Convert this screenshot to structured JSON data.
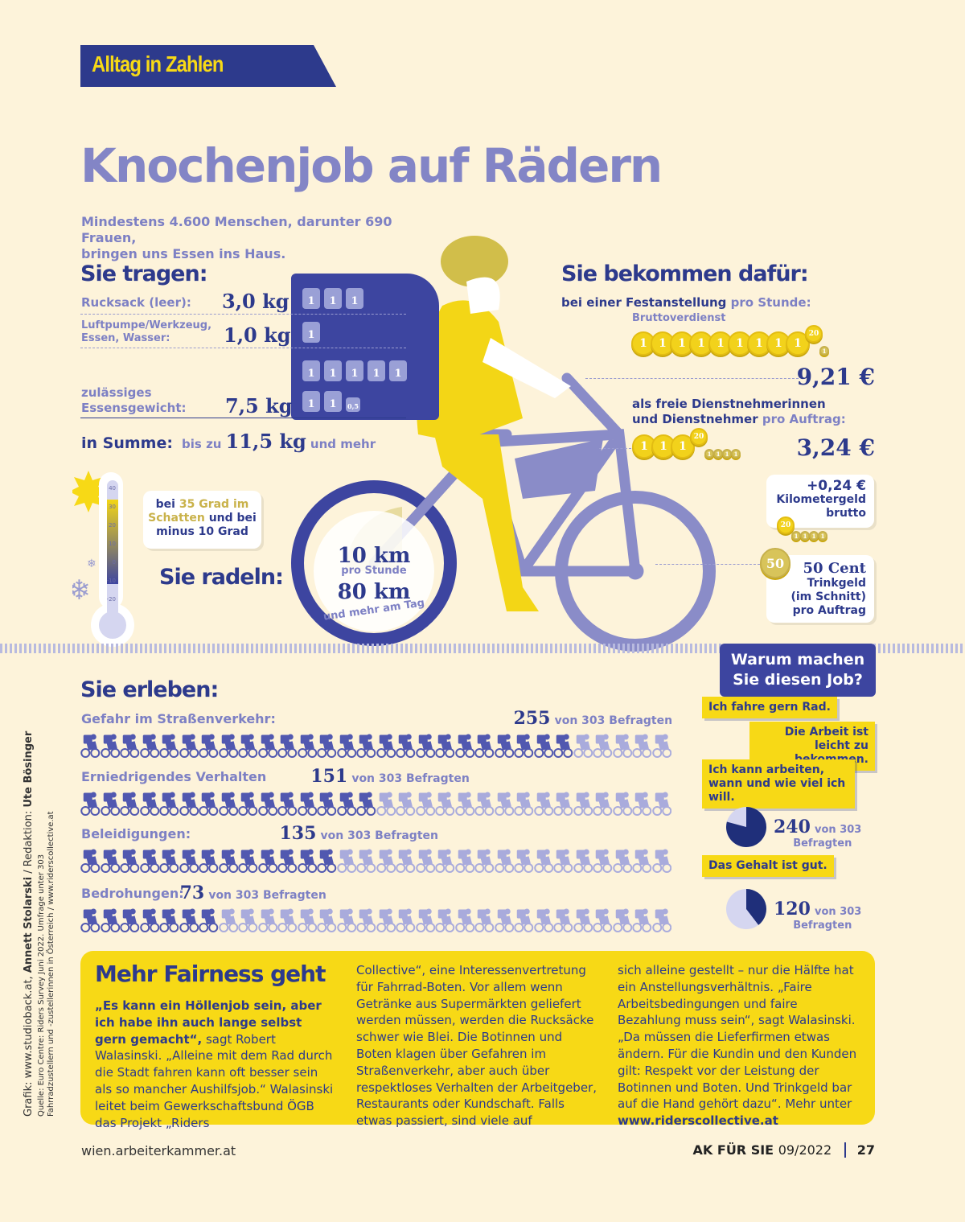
{
  "kicker": "Alltag in Zahlen",
  "title": "Knochenjob auf Rädern",
  "intro": [
    "Mindestens 4.600  Menschen, darunter 690 Frauen,",
    "bringen uns Essen ins Haus."
  ],
  "carry": {
    "heading": "Sie tragen:",
    "items": [
      {
        "label": "Rucksack (leer):",
        "value": "3,0 kg",
        "weights": [
          "1",
          "1",
          "1"
        ]
      },
      {
        "label": "Luftpumpe/Werkzeug, Essen, Wasser:",
        "value": "1,0 kg",
        "weights": [
          "1"
        ]
      },
      {
        "label": "zulässiges Essensgewicht:",
        "value": "7,5 kg",
        "weights": [
          "1",
          "1",
          "1",
          "1",
          "1",
          "1",
          "1",
          "0,5"
        ]
      }
    ],
    "sum_label": "in Summe:",
    "sum_prefix": "bis zu",
    "sum_value": "11,5 kg",
    "sum_suffix": "und mehr"
  },
  "pay": {
    "heading": "Sie bekommen dafür:",
    "fixed_label_bold": "bei einer Festanstellung",
    "fixed_label_light": "pro Stunde:",
    "gross_label": "Bruttoverdienst",
    "fixed_value": "9,21 €",
    "fixed_coins": [
      "1",
      "1",
      "1",
      "1",
      "1",
      "1",
      "1",
      "1",
      "1",
      "20",
      "1"
    ],
    "free_label_1": "als freie Dienstnehmerinnen",
    "free_label_2": "und Dienstnehmer",
    "free_label_light": "pro Auftrag:",
    "free_value": "3,24 €",
    "free_coins": [
      "1",
      "1",
      "1",
      "20",
      "1",
      "1",
      "1",
      "1"
    ],
    "km_value": "+0,24 €",
    "km_label": "Kilometergeld",
    "km_label2": "brutto",
    "km_coins": [
      "20",
      "1",
      "1",
      "1",
      "1"
    ],
    "tip_coin": "50",
    "tip_value": "50 Cent",
    "tip_l1": "Trinkgeld",
    "tip_l2": "(im Schnitt)",
    "tip_l3": "pro Auftrag"
  },
  "ride": {
    "temp_a": "bei",
    "temp_b": "35 Grad im Schatten",
    "temp_c": "und bei minus 10 Grad",
    "heading": "Sie radeln:",
    "speed": "10 km",
    "speed_unit": "pro Stunde",
    "distance": "80 km",
    "distance_suffix": "und mehr am Tag",
    "thermo_ticks": [
      "40",
      "30",
      "20",
      "10",
      "0",
      "-10",
      "-20"
    ],
    "temp_max": 35,
    "temp_min": -10
  },
  "experience": {
    "heading": "Sie erleben:",
    "total": 303,
    "of_label": "von 303 Befragten",
    "items": [
      {
        "label": "Gefahr im Straßenverkehr:",
        "value": 255
      },
      {
        "label": "Erniedrigendes Verhalten",
        "value": 151
      },
      {
        "label": "Beleidigungen:",
        "value": 135
      },
      {
        "label": "Bedrohungen:",
        "value": 73
      }
    ]
  },
  "why": {
    "heading": "Warum machen Sie diesen Job?",
    "reasons": [
      "Ich fahre gern Rad.",
      "Die Arbeit ist leicht zu bekommen.",
      "Ich kann arbeiten, wann und wie viel ich will.",
      "Das Gehalt ist gut."
    ],
    "stats": [
      {
        "value": 240,
        "of": "von 303",
        "label": "Befragten"
      },
      {
        "value": 120,
        "of": "von 303",
        "label": "Befragten"
      }
    ]
  },
  "fairness": {
    "heading": "Mehr Fairness geht",
    "quote": "„Es kann ein Höllenjob sein, aber ich habe ihn auch lange selbst gern gemacht“,",
    "col1": " sagt Robert Walasinski. „Alleine mit dem Rad durch die Stadt fahren kann oft besser sein als so mancher Aushilfsjob.“ Walasinski leitet beim Gewerkschaftsbund ÖGB das Projekt „Riders",
    "col2": "Collective“, eine Interessenvertretung für Fahrrad-Boten. Vor allem wenn Getränke aus Supermärkten geliefert werden müssen, werden die Rucksäcke schwer wie Blei. Die Botinnen und Boten klagen über Gefahren im Straßenverkehr, aber auch über respektloses Verhalten der Arbeitgeber, Restaurants oder Kundschaft. Falls etwas passiert, sind viele auf",
    "col3": "sich alleine gestellt – nur die Hälfte hat ein Anstellungsverhältnis. „Faire Arbeitsbedingungen und faire Bezahlung muss sein“, sagt Walasinski. „Da müssen die Lieferfirmen etwas ändern. Für die Kundin und den Kunden gilt: Respekt vor der Leistung der Botinnen und Boten. Und Trinkgeld bar auf die Hand gehört dazu“. Mehr unter ",
    "link": "www.riderscollective.at"
  },
  "credits": {
    "line1_a": "Grafik: www.studioback.at, ",
    "line1_b": "Annett Stolarski",
    "line1_c": " / Redaktion: ",
    "line1_d": "Ute Bösinger",
    "source": "Quelle: Euro Centre: Riders Survey Juni 2022. Umfrage unter 303 Fahrradzustellern und -zustellerinnen in Österreich / www.riderscollective.at"
  },
  "footer": {
    "url": "wien.arbeiterkammer.at",
    "magazine": "AK FÜR SIE",
    "issue": "09/2022",
    "page": "27"
  },
  "colors": {
    "dark_blue": "#2d3a8c",
    "lavender": "#8385c6",
    "yellow": "#f7d916",
    "background": "#fdf3da",
    "gold": "#c9b24a"
  }
}
